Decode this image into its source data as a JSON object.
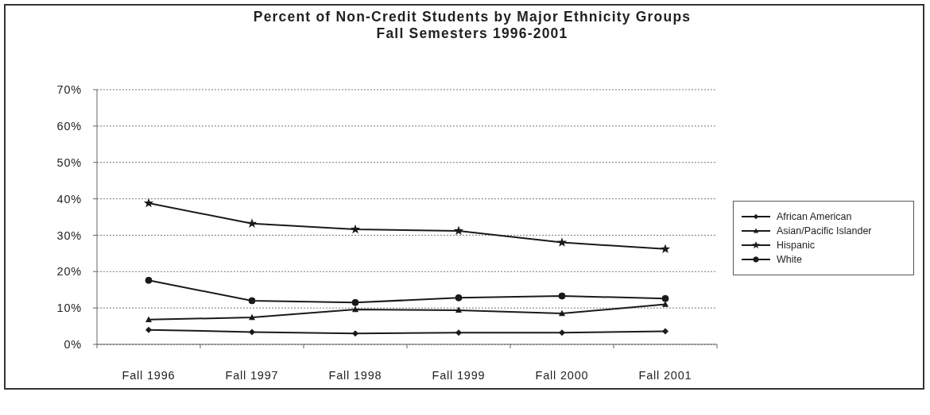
{
  "chart_data": {
    "type": "line",
    "title": "Percent of Non-Credit Students by Major Ethnicity Groups",
    "subtitle": "Fall Semesters 1996-2001",
    "categories": [
      "Fall 1996",
      "Fall 1997",
      "Fall 1998",
      "Fall 1999",
      "Fall 2000",
      "Fall 2001"
    ],
    "series": [
      {
        "name": "African American",
        "color": "#1a1a1a",
        "marker": "diamond",
        "values": [
          4.0,
          3.4,
          3.0,
          3.2,
          3.2,
          3.6
        ]
      },
      {
        "name": "Asian/Pacific Islander",
        "color": "#1a1a1a",
        "marker": "triangle",
        "values": [
          6.8,
          7.4,
          9.6,
          9.4,
          8.5,
          11.0
        ]
      },
      {
        "name": "Hispanic",
        "color": "#1a1a1a",
        "marker": "star",
        "values": [
          38.8,
          33.2,
          31.6,
          31.2,
          28.0,
          26.2
        ]
      },
      {
        "name": "White",
        "color": "#1a1a1a",
        "marker": "circle",
        "values": [
          17.6,
          12.0,
          11.5,
          12.8,
          13.3,
          12.6
        ]
      }
    ],
    "ylim": [
      0,
      70
    ],
    "yticks": [
      {
        "value": 0,
        "label": "0%"
      },
      {
        "value": 10,
        "label": "10%"
      },
      {
        "value": 20,
        "label": "20%"
      },
      {
        "value": 30,
        "label": "30%"
      },
      {
        "value": 40,
        "label": "40%"
      },
      {
        "value": 50,
        "label": "50%"
      },
      {
        "value": 60,
        "label": "60%"
      },
      {
        "value": 70,
        "label": "70%"
      }
    ],
    "grid": "y",
    "legend": "right",
    "line_style": "solid"
  }
}
